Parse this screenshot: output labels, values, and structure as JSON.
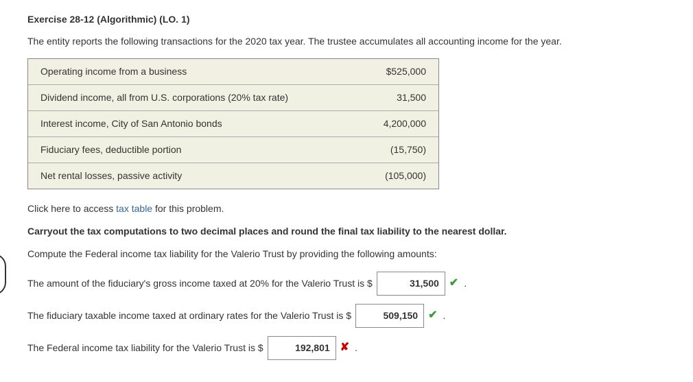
{
  "heading": "Exercise 28-12 (Algorithmic) (LO. 1)",
  "intro": "The entity reports the following transactions for the 2020 tax year. The trustee accumulates all accounting income for the year.",
  "table": {
    "rows": [
      {
        "label": "Operating income from a business",
        "value": "$525,000"
      },
      {
        "label": "Dividend income, all from U.S. corporations (20% tax rate)",
        "value": "31,500"
      },
      {
        "label": "Interest income, City of San Antonio bonds",
        "value": "4,200,000"
      },
      {
        "label": "Fiduciary fees, deductible portion",
        "value": "(15,750)"
      },
      {
        "label": "Net rental losses, passive activity",
        "value": "(105,000)"
      }
    ],
    "background_color": "#f0f0e3",
    "border_color": "#888888"
  },
  "access_prefix": "Click here to access ",
  "access_link": "tax table",
  "access_suffix": " for this problem.",
  "instruction_bold": "Carryout the tax computations to two decimal places and round the final tax liability to the nearest dollar.",
  "compute_line": "Compute the Federal income tax liability for the Valerio Trust by providing the following amounts:",
  "answers": [
    {
      "text": "The amount of the fiduciary's gross income taxed at 20% for the Valerio Trust is $",
      "value": "31,500",
      "status": "correct"
    },
    {
      "text": "The fiduciary taxable income taxed at ordinary rates for the Valerio Trust is $",
      "value": "509,150",
      "status": "correct"
    },
    {
      "text": "The Federal income tax liability for the Valerio Trust is $",
      "value": "192,801",
      "status": "incorrect"
    }
  ],
  "icons": {
    "check": "✔",
    "cross": "✘"
  },
  "colors": {
    "link": "#336699",
    "check": "#3a9b3a",
    "cross": "#cc0000"
  }
}
